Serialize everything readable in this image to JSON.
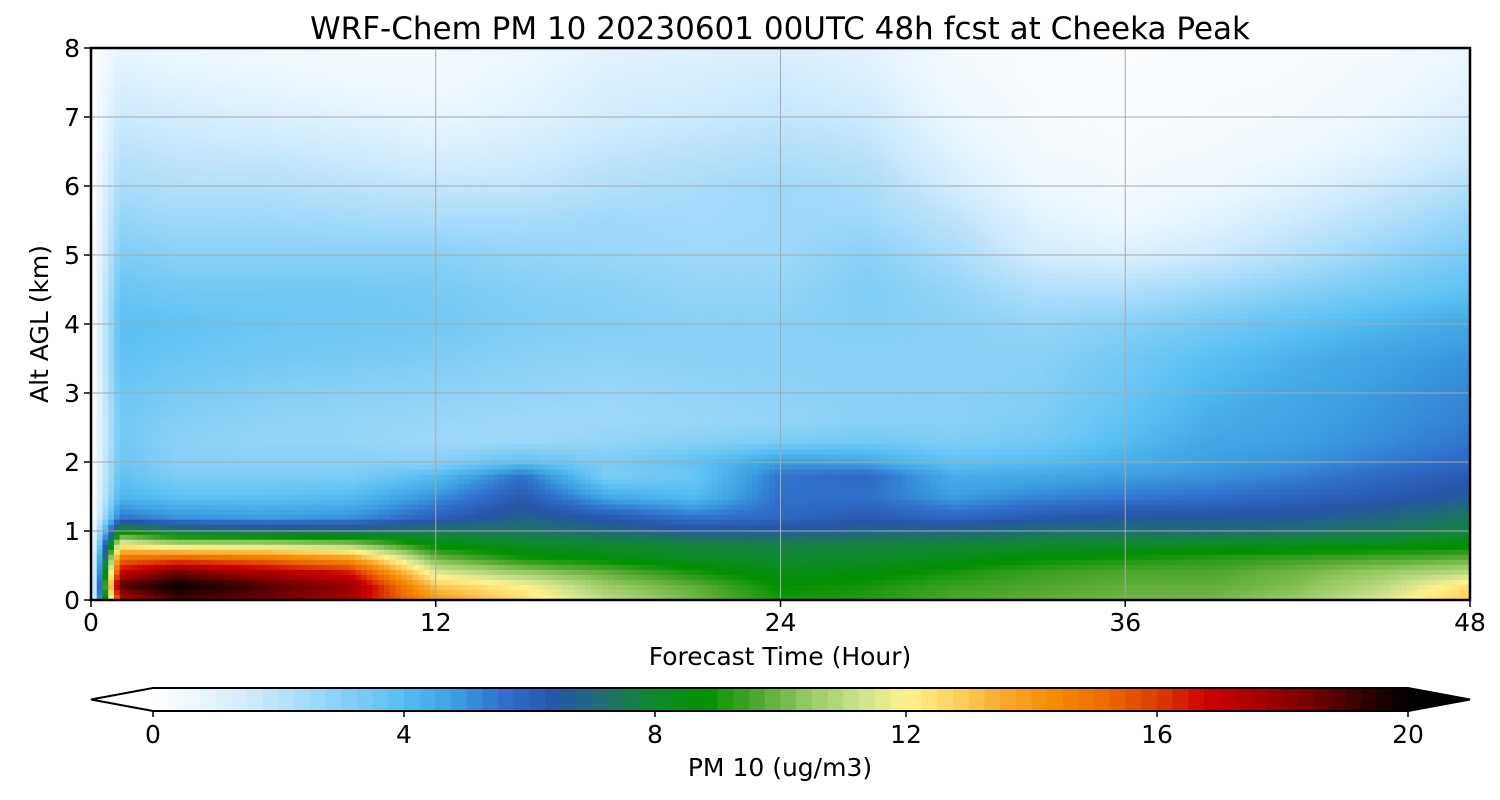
{
  "chart_data": {
    "type": "heatmap",
    "title": "WRF-Chem PM 10  20230601 00UTC 48h fcst at Cheeka Peak",
    "xlabel": "Forecast Time (Hour)",
    "ylabel": "Alt AGL (km)",
    "xlim": [
      0,
      48
    ],
    "ylim": [
      0,
      8
    ],
    "xticks": [
      0,
      12,
      24,
      36,
      48
    ],
    "yticks": [
      0,
      1,
      2,
      3,
      4,
      5,
      6,
      7,
      8
    ],
    "grid": true,
    "colorbar": {
      "label": "PM 10  (ug/m3)",
      "ticks": [
        0,
        4,
        8,
        12,
        16,
        20
      ],
      "range": [
        0,
        20
      ],
      "extend": "both",
      "colors": [
        "#ffffff",
        "#e8f5fd",
        "#cdeafc",
        "#a8dcfa",
        "#7fcdf6",
        "#55bdf2",
        "#3d9fe0",
        "#2f6fcb",
        "#2756a8",
        "#1f6f6e",
        "#0f8a2e",
        "#009000",
        "#4ea62e",
        "#94c860",
        "#c8e08a",
        "#fff28c",
        "#fdd260",
        "#f9a72a",
        "#f58a00",
        "#ec6a00",
        "#dd3c00",
        "#cc0000",
        "#a80000",
        "#7a0000",
        "#3a0000",
        "#000000"
      ]
    },
    "x_hours": [
      0,
      1,
      3,
      6,
      9,
      12,
      15,
      18,
      21,
      24,
      27,
      30,
      33,
      36,
      39,
      42,
      45,
      48
    ],
    "y_km": [
      0.0,
      0.2,
      0.4,
      0.6,
      0.8,
      1.0,
      1.2,
      1.5,
      1.8,
      2.0,
      2.3,
      2.6,
      3.0,
      3.5,
      4.0,
      4.5,
      5.0,
      5.5,
      6.0,
      6.5,
      7.0,
      7.5,
      8.0
    ],
    "values_ug_m3": [
      [
        0,
        17,
        19,
        18.5,
        17.5,
        14,
        12.5,
        11,
        10,
        9,
        9.2,
        9.6,
        9.8,
        10,
        10,
        10.5,
        11.5,
        13
      ],
      [
        0,
        19,
        20,
        19,
        18,
        13,
        12,
        10.5,
        9.8,
        8.8,
        9,
        9.4,
        9.6,
        9.8,
        9.8,
        10.2,
        11,
        12.5
      ],
      [
        0,
        17,
        18.5,
        17.5,
        16.5,
        11.5,
        10.5,
        9.8,
        9,
        8.4,
        8.6,
        9,
        9.4,
        9.6,
        9.6,
        10,
        10.5,
        11
      ],
      [
        0,
        15,
        15.5,
        15,
        14,
        10,
        9,
        8.6,
        8.2,
        8,
        8.1,
        8.4,
        8.8,
        9,
        9.2,
        9.4,
        9.6,
        9.8
      ],
      [
        0,
        12,
        11,
        11,
        10.5,
        8.6,
        8.2,
        8,
        7.8,
        7.7,
        7.8,
        7.9,
        8,
        8.1,
        8.2,
        8.3,
        8.4,
        8.6
      ],
      [
        0,
        8.5,
        7.5,
        7.2,
        7.2,
        7.5,
        7.3,
        7,
        6.6,
        6.6,
        6.8,
        6.9,
        7.2,
        7.2,
        7.1,
        7.2,
        7.4,
        7.8
      ],
      [
        0,
        5.5,
        5,
        4.8,
        5,
        6,
        6.8,
        6.2,
        5.5,
        5.8,
        6.2,
        5.8,
        6.2,
        6.5,
        6.5,
        6.6,
        6.9,
        7.4
      ],
      [
        0,
        4.2,
        3.8,
        3.8,
        4,
        5,
        6.2,
        4.5,
        4,
        5.6,
        5.6,
        4.8,
        5.2,
        5.4,
        5.6,
        5.9,
        6.2,
        6.6
      ],
      [
        0,
        3.8,
        3.2,
        3.2,
        3.2,
        4,
        5.6,
        3.2,
        3.6,
        5.5,
        5.8,
        4.4,
        4.5,
        4.8,
        5,
        5.3,
        5.8,
        6.2
      ],
      [
        0,
        3.6,
        3,
        3,
        3,
        3,
        3.8,
        3.2,
        3.8,
        4.8,
        4.6,
        3.8,
        4,
        4.4,
        4.8,
        5,
        5.4,
        5.8
      ],
      [
        0,
        3.4,
        3,
        2.8,
        2.8,
        2.6,
        2.6,
        2.8,
        3,
        3.2,
        3.4,
        3.2,
        3.4,
        4,
        4.6,
        4.8,
        5.1,
        5.5
      ],
      [
        0,
        3.4,
        3.1,
        2.9,
        2.8,
        2.7,
        2.6,
        2.6,
        2.7,
        2.8,
        3,
        3,
        3.2,
        3.8,
        4.4,
        4.7,
        5,
        5.3
      ],
      [
        0,
        3.6,
        3.3,
        3.1,
        3,
        2.9,
        2.8,
        2.7,
        2.8,
        2.9,
        3,
        3,
        3.1,
        3.6,
        4.2,
        4.6,
        4.9,
        5.2
      ],
      [
        0,
        3.8,
        3.6,
        3.4,
        3.3,
        3.2,
        3,
        2.9,
        3,
        3,
        3,
        3,
        3,
        3.4,
        3.9,
        4.3,
        4.7,
        5
      ],
      [
        0,
        3.9,
        3.8,
        3.6,
        3.5,
        3.4,
        3.2,
        3.1,
        3,
        3,
        3.1,
        3,
        2.8,
        3,
        3.4,
        3.8,
        4.2,
        4.6
      ],
      [
        0,
        3.6,
        3.4,
        3.4,
        3.4,
        3.3,
        3.1,
        3,
        2.8,
        2.8,
        3.2,
        2.8,
        2.2,
        2.2,
        2.6,
        3,
        3.4,
        3.8
      ],
      [
        0,
        3.2,
        3,
        3,
        3,
        3,
        2.8,
        2.7,
        2.6,
        2.6,
        3,
        2.4,
        1.4,
        1.2,
        1.6,
        2.2,
        2.8,
        3.3
      ],
      [
        0,
        2.8,
        2.6,
        2.6,
        2.5,
        2.4,
        2.4,
        2.6,
        2.5,
        2.6,
        2.6,
        2,
        1,
        0.6,
        1,
        1.6,
        2.2,
        2.8
      ],
      [
        0,
        2.4,
        2.2,
        2.2,
        2,
        1.8,
        1.8,
        2.2,
        2.4,
        2.6,
        2.4,
        1.4,
        0.6,
        0.4,
        0.6,
        1,
        1.6,
        2.2
      ],
      [
        0,
        2,
        1.8,
        1.7,
        1.5,
        1.2,
        1.4,
        1.8,
        2,
        2.2,
        2,
        1,
        0.4,
        0.3,
        0.4,
        0.6,
        1,
        1.6
      ],
      [
        0,
        1.6,
        1.4,
        1.2,
        1,
        0.8,
        1,
        1.4,
        1.6,
        1.8,
        1.6,
        0.7,
        0.3,
        0.2,
        0.3,
        0.4,
        0.7,
        1.2
      ],
      [
        0,
        1.2,
        1,
        0.8,
        0.6,
        0.5,
        0.8,
        1.2,
        1.3,
        1.5,
        1.2,
        0.5,
        0.2,
        0.2,
        0.2,
        0.3,
        0.5,
        0.9
      ],
      [
        0,
        0.8,
        0.6,
        0.5,
        0.4,
        0.4,
        0.6,
        1,
        1.1,
        1.2,
        1,
        0.4,
        0.2,
        0.1,
        0.2,
        0.2,
        0.4,
        0.6
      ]
    ]
  }
}
